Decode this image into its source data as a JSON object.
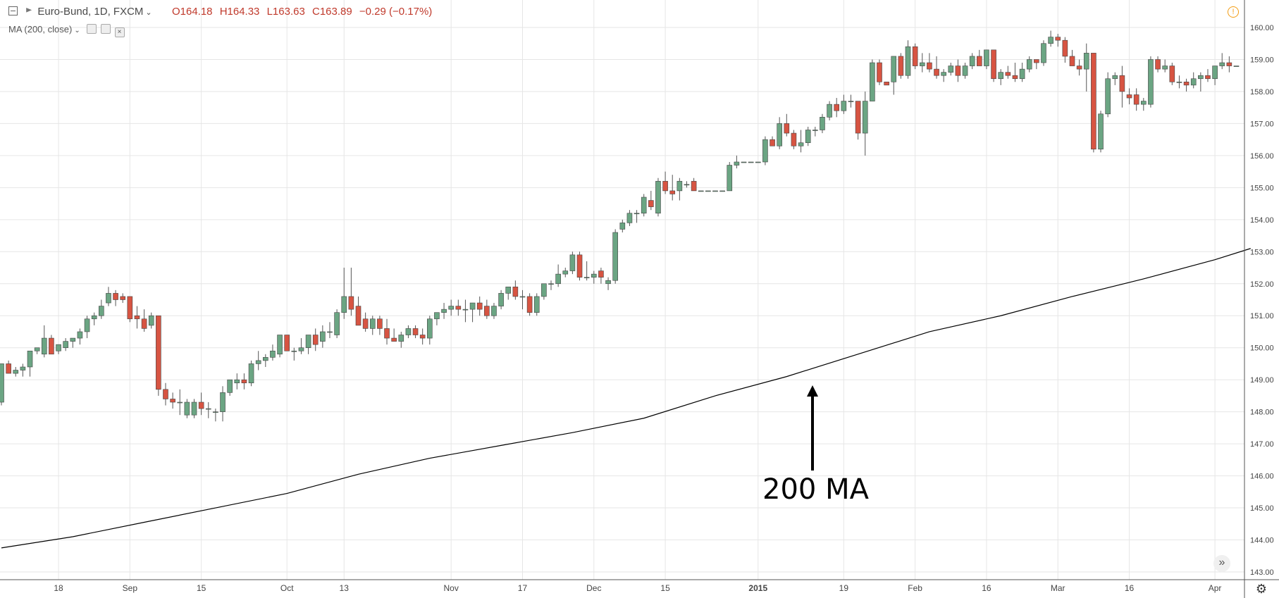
{
  "header": {
    "collapse_icon": "minus-square-icon",
    "symbol_icon": "flag-icon",
    "symbol": "Euro-Bund, 1D, FXCM",
    "open": "O164.18",
    "high": "H164.33",
    "low": "L163.63",
    "close": "C163.89",
    "change": "−0.29 (−0.17%)",
    "indicator": "MA (200, close)",
    "alert_icon": "warning-circle-icon"
  },
  "controls": {
    "scroll_right_icon": "double-chevron-right-icon",
    "settings_icon": "gear-icon"
  },
  "annotation": {
    "label": "200 MA",
    "arrow_icon": "arrow-up-icon"
  },
  "colors": {
    "up": "#6ba583",
    "down": "#d75442",
    "ma": "#000000",
    "grid": "#e6e6e6",
    "ohlc": "#c0392b"
  },
  "chart_data": {
    "type": "candlestick",
    "y_axis": {
      "min": 143.0,
      "max": 160.0,
      "ticks": [
        "143.00",
        "144.00",
        "145.00",
        "146.00",
        "147.00",
        "148.00",
        "149.00",
        "150.00",
        "151.00",
        "152.00",
        "153.00",
        "154.00",
        "155.00",
        "156.00",
        "157.00",
        "158.00",
        "159.00",
        "160.00"
      ]
    },
    "x_ticks": [
      {
        "label": "18",
        "bar": 8
      },
      {
        "label": "Sep",
        "bar": 18
      },
      {
        "label": "15",
        "bar": 28
      },
      {
        "label": "Oct",
        "bar": 40
      },
      {
        "label": "13",
        "bar": 48
      },
      {
        "label": "Nov",
        "bar": 63
      },
      {
        "label": "17",
        "bar": 73
      },
      {
        "label": "Dec",
        "bar": 83
      },
      {
        "label": "15",
        "bar": 93
      },
      {
        "label": "2015",
        "bar": 106
      },
      {
        "label": "19",
        "bar": 118
      },
      {
        "label": "Feb",
        "bar": 128
      },
      {
        "label": "16",
        "bar": 138
      },
      {
        "label": "Mar",
        "bar": 148
      },
      {
        "label": "16",
        "bar": 158
      },
      {
        "label": "Apr",
        "bar": 170
      }
    ],
    "candles": [
      [
        148.3,
        149.5,
        148.2,
        149.5
      ],
      [
        149.5,
        149.6,
        149.2,
        149.2
      ],
      [
        149.2,
        149.4,
        149.1,
        149.3
      ],
      [
        149.3,
        149.5,
        149.1,
        149.4
      ],
      [
        149.4,
        149.9,
        149.1,
        149.9
      ],
      [
        149.9,
        150.0,
        149.8,
        150.0
      ],
      [
        149.8,
        150.7,
        149.7,
        150.3
      ],
      [
        150.3,
        150.4,
        149.8,
        149.8
      ],
      [
        149.9,
        150.1,
        149.8,
        150.1
      ],
      [
        150.0,
        150.3,
        149.9,
        150.2
      ],
      [
        150.2,
        150.3,
        150.0,
        150.3
      ],
      [
        150.3,
        150.6,
        150.1,
        150.5
      ],
      [
        150.5,
        151.0,
        150.3,
        150.9
      ],
      [
        150.9,
        151.1,
        150.7,
        151.0
      ],
      [
        151.0,
        151.5,
        150.9,
        151.3
      ],
      [
        151.4,
        151.9,
        151.3,
        151.7
      ],
      [
        151.7,
        151.8,
        151.3,
        151.5
      ],
      [
        151.6,
        151.7,
        151.4,
        151.5
      ],
      [
        151.6,
        151.6,
        150.8,
        150.9
      ],
      [
        151.0,
        151.3,
        150.6,
        150.9
      ],
      [
        150.9,
        151.2,
        150.5,
        150.6
      ],
      [
        150.7,
        151.1,
        150.6,
        151.0
      ],
      [
        151.0,
        151.0,
        148.5,
        148.7
      ],
      [
        148.7,
        148.9,
        148.2,
        148.4
      ],
      [
        148.4,
        148.6,
        148.1,
        148.3
      ],
      [
        148.3,
        148.7,
        147.9,
        148.3
      ],
      [
        147.9,
        148.4,
        147.8,
        148.3
      ],
      [
        147.9,
        148.4,
        147.8,
        148.3
      ],
      [
        148.3,
        148.6,
        147.9,
        148.1
      ],
      [
        148.1,
        148.3,
        147.8,
        148.1
      ],
      [
        148.0,
        148.1,
        147.7,
        148.0
      ],
      [
        148.0,
        148.8,
        147.7,
        148.6
      ],
      [
        148.6,
        149.0,
        148.5,
        149.0
      ],
      [
        148.9,
        149.2,
        148.7,
        149.0
      ],
      [
        149.0,
        149.2,
        148.7,
        148.9
      ],
      [
        148.9,
        149.6,
        148.8,
        149.5
      ],
      [
        149.5,
        149.9,
        149.3,
        149.6
      ],
      [
        149.6,
        149.8,
        149.4,
        149.7
      ],
      [
        149.7,
        150.1,
        149.6,
        149.9
      ],
      [
        149.8,
        150.4,
        149.7,
        150.4
      ],
      [
        150.4,
        150.4,
        149.9,
        149.9
      ],
      [
        149.9,
        150.0,
        149.6,
        149.9
      ],
      [
        149.9,
        150.3,
        149.8,
        150.0
      ],
      [
        150.0,
        150.4,
        149.8,
        150.4
      ],
      [
        150.4,
        150.6,
        149.9,
        150.1
      ],
      [
        150.2,
        150.7,
        150.0,
        150.5
      ],
      [
        150.5,
        150.8,
        150.3,
        150.5
      ],
      [
        150.4,
        151.2,
        150.3,
        151.1
      ],
      [
        151.1,
        152.5,
        150.9,
        151.6
      ],
      [
        151.6,
        152.5,
        151.0,
        151.2
      ],
      [
        151.3,
        151.6,
        150.8,
        150.7
      ],
      [
        150.9,
        151.1,
        150.5,
        150.6
      ],
      [
        150.6,
        151.0,
        150.4,
        150.9
      ],
      [
        150.9,
        151.0,
        150.4,
        150.6
      ],
      [
        150.6,
        150.9,
        150.1,
        150.3
      ],
      [
        150.3,
        150.6,
        150.2,
        150.2
      ],
      [
        150.2,
        150.5,
        150.0,
        150.4
      ],
      [
        150.4,
        150.7,
        150.3,
        150.6
      ],
      [
        150.6,
        150.7,
        150.3,
        150.4
      ],
      [
        150.4,
        150.6,
        150.1,
        150.3
      ],
      [
        150.3,
        151.0,
        150.1,
        150.9
      ],
      [
        150.9,
        151.1,
        150.7,
        151.1
      ],
      [
        151.1,
        151.4,
        150.9,
        151.2
      ],
      [
        151.2,
        151.5,
        151.0,
        151.3
      ],
      [
        151.3,
        151.5,
        151.0,
        151.2
      ],
      [
        151.2,
        151.5,
        150.8,
        151.2
      ],
      [
        151.2,
        151.4,
        150.8,
        151.4
      ],
      [
        151.4,
        151.6,
        151.0,
        151.2
      ],
      [
        151.3,
        151.5,
        150.9,
        151.0
      ],
      [
        151.0,
        151.4,
        150.9,
        151.3
      ],
      [
        151.3,
        151.8,
        151.2,
        151.7
      ],
      [
        151.7,
        151.9,
        151.5,
        151.9
      ],
      [
        151.9,
        152.1,
        151.5,
        151.6
      ],
      [
        151.6,
        151.8,
        151.2,
        151.6
      ],
      [
        151.6,
        151.7,
        151.0,
        151.1
      ],
      [
        151.1,
        151.7,
        151.0,
        151.6
      ],
      [
        151.6,
        152.0,
        151.5,
        152.0
      ],
      [
        152.0,
        152.1,
        151.8,
        152.0
      ],
      [
        152.0,
        152.6,
        151.9,
        152.3
      ],
      [
        152.3,
        152.5,
        152.2,
        152.4
      ],
      [
        152.4,
        153.0,
        152.3,
        152.9
      ],
      [
        152.9,
        153.0,
        152.1,
        152.2
      ],
      [
        152.2,
        152.7,
        152.1,
        152.2
      ],
      [
        152.2,
        152.4,
        152.0,
        152.3
      ],
      [
        152.4,
        152.5,
        152.0,
        152.2
      ],
      [
        152.0,
        152.2,
        151.8,
        152.1
      ],
      [
        152.1,
        153.7,
        152.0,
        153.6
      ],
      [
        153.7,
        154.0,
        153.6,
        153.9
      ],
      [
        153.9,
        154.3,
        153.8,
        154.2
      ],
      [
        154.2,
        154.3,
        153.9,
        154.2
      ],
      [
        154.2,
        154.8,
        154.1,
        154.7
      ],
      [
        154.6,
        154.9,
        154.3,
        154.4
      ],
      [
        154.2,
        155.3,
        154.1,
        155.2
      ],
      [
        155.2,
        155.5,
        154.8,
        154.9
      ],
      [
        154.9,
        155.4,
        154.6,
        154.8
      ],
      [
        154.9,
        155.3,
        154.6,
        155.2
      ],
      [
        155.1,
        155.2,
        155.0,
        155.1
      ],
      [
        155.2,
        155.3,
        154.9,
        154.9
      ],
      [
        154.9,
        154.9,
        154.9,
        154.9
      ],
      [
        154.9,
        154.9,
        154.9,
        154.9
      ],
      [
        154.9,
        154.9,
        154.9,
        154.9
      ],
      [
        154.9,
        154.9,
        154.9,
        154.9
      ],
      [
        154.9,
        155.8,
        154.9,
        155.7
      ],
      [
        155.7,
        156.0,
        155.6,
        155.8
      ],
      [
        155.8,
        155.8,
        155.8,
        155.8
      ],
      [
        155.8,
        155.8,
        155.8,
        155.8
      ],
      [
        155.8,
        155.8,
        155.8,
        155.8
      ],
      [
        155.8,
        156.6,
        155.7,
        156.5
      ],
      [
        156.5,
        156.6,
        156.3,
        156.3
      ],
      [
        156.3,
        157.2,
        156.2,
        157.0
      ],
      [
        157.0,
        157.3,
        156.6,
        156.7
      ],
      [
        156.7,
        156.8,
        156.2,
        156.3
      ],
      [
        156.3,
        156.8,
        156.1,
        156.4
      ],
      [
        156.4,
        156.9,
        156.3,
        156.8
      ],
      [
        156.8,
        156.9,
        156.6,
        156.8
      ],
      [
        156.8,
        157.3,
        156.7,
        157.2
      ],
      [
        157.2,
        157.7,
        157.1,
        157.6
      ],
      [
        157.6,
        157.8,
        157.2,
        157.4
      ],
      [
        157.4,
        157.9,
        157.3,
        157.7
      ],
      [
        157.7,
        157.9,
        157.5,
        157.7
      ],
      [
        157.7,
        157.7,
        156.5,
        156.7
      ],
      [
        156.7,
        158.0,
        156.0,
        157.7
      ],
      [
        157.7,
        159.0,
        157.7,
        158.9
      ],
      [
        158.9,
        159.0,
        158.2,
        158.3
      ],
      [
        158.3,
        158.3,
        158.2,
        158.2
      ],
      [
        158.3,
        159.1,
        157.9,
        159.1
      ],
      [
        159.1,
        159.2,
        158.4,
        158.5
      ],
      [
        158.5,
        159.6,
        158.4,
        159.4
      ],
      [
        159.4,
        159.5,
        158.7,
        158.8
      ],
      [
        158.8,
        159.2,
        158.6,
        158.9
      ],
      [
        158.9,
        159.2,
        158.6,
        158.7
      ],
      [
        158.7,
        159.1,
        158.4,
        158.5
      ],
      [
        158.5,
        158.7,
        158.3,
        158.6
      ],
      [
        158.6,
        158.9,
        158.5,
        158.8
      ],
      [
        158.8,
        159.0,
        158.3,
        158.5
      ],
      [
        158.5,
        158.9,
        158.4,
        158.8
      ],
      [
        158.8,
        159.2,
        158.7,
        159.1
      ],
      [
        159.1,
        159.3,
        158.8,
        158.8
      ],
      [
        158.8,
        159.3,
        158.7,
        159.3
      ],
      [
        159.3,
        159.3,
        158.3,
        158.4
      ],
      [
        158.4,
        158.7,
        158.2,
        158.6
      ],
      [
        158.6,
        158.8,
        158.4,
        158.5
      ],
      [
        158.5,
        158.9,
        158.3,
        158.4
      ],
      [
        158.4,
        158.9,
        158.3,
        158.7
      ],
      [
        158.7,
        159.1,
        158.6,
        159.0
      ],
      [
        159.0,
        159.0,
        158.7,
        158.9
      ],
      [
        158.9,
        159.6,
        158.8,
        159.5
      ],
      [
        159.5,
        159.9,
        159.4,
        159.7
      ],
      [
        159.7,
        159.8,
        159.4,
        159.6
      ],
      [
        159.6,
        159.7,
        158.9,
        159.1
      ],
      [
        159.1,
        159.3,
        158.8,
        158.8
      ],
      [
        158.8,
        159.0,
        158.5,
        158.7
      ],
      [
        158.7,
        159.5,
        158.0,
        159.2
      ],
      [
        159.2,
        159.2,
        156.1,
        156.2
      ],
      [
        156.2,
        157.4,
        156.1,
        157.3
      ],
      [
        157.3,
        158.6,
        157.2,
        158.4
      ],
      [
        158.4,
        158.6,
        158.2,
        158.5
      ],
      [
        158.5,
        158.8,
        157.5,
        158.0
      ],
      [
        157.9,
        158.1,
        157.6,
        157.8
      ],
      [
        157.9,
        158.1,
        157.4,
        157.6
      ],
      [
        157.6,
        157.8,
        157.4,
        157.7
      ],
      [
        157.6,
        159.1,
        157.5,
        159.0
      ],
      [
        159.0,
        159.1,
        158.6,
        158.7
      ],
      [
        158.7,
        159.0,
        158.6,
        158.8
      ],
      [
        158.8,
        158.9,
        158.2,
        158.3
      ],
      [
        158.3,
        158.5,
        158.1,
        158.3
      ],
      [
        158.3,
        158.4,
        158.0,
        158.2
      ],
      [
        158.2,
        158.6,
        158.1,
        158.4
      ],
      [
        158.4,
        158.6,
        158.0,
        158.5
      ],
      [
        158.5,
        158.7,
        158.3,
        158.4
      ],
      [
        158.4,
        158.8,
        158.2,
        158.8
      ],
      [
        158.8,
        159.2,
        158.7,
        158.9
      ],
      [
        158.9,
        159.1,
        158.6,
        158.8
      ],
      [
        158.8,
        158.8,
        158.8,
        158.8
      ]
    ],
    "ma": [
      [
        0,
        143.75
      ],
      [
        10,
        144.1
      ],
      [
        20,
        144.55
      ],
      [
        30,
        145.0
      ],
      [
        40,
        145.45
      ],
      [
        50,
        146.05
      ],
      [
        60,
        146.55
      ],
      [
        70,
        146.95
      ],
      [
        80,
        147.35
      ],
      [
        90,
        147.8
      ],
      [
        100,
        148.5
      ],
      [
        110,
        149.1
      ],
      [
        120,
        149.8
      ],
      [
        130,
        150.5
      ],
      [
        140,
        151.0
      ],
      [
        150,
        151.6
      ],
      [
        160,
        152.15
      ],
      [
        170,
        152.75
      ],
      [
        175,
        153.1
      ]
    ],
    "ma_name": "MA (200, close)"
  }
}
